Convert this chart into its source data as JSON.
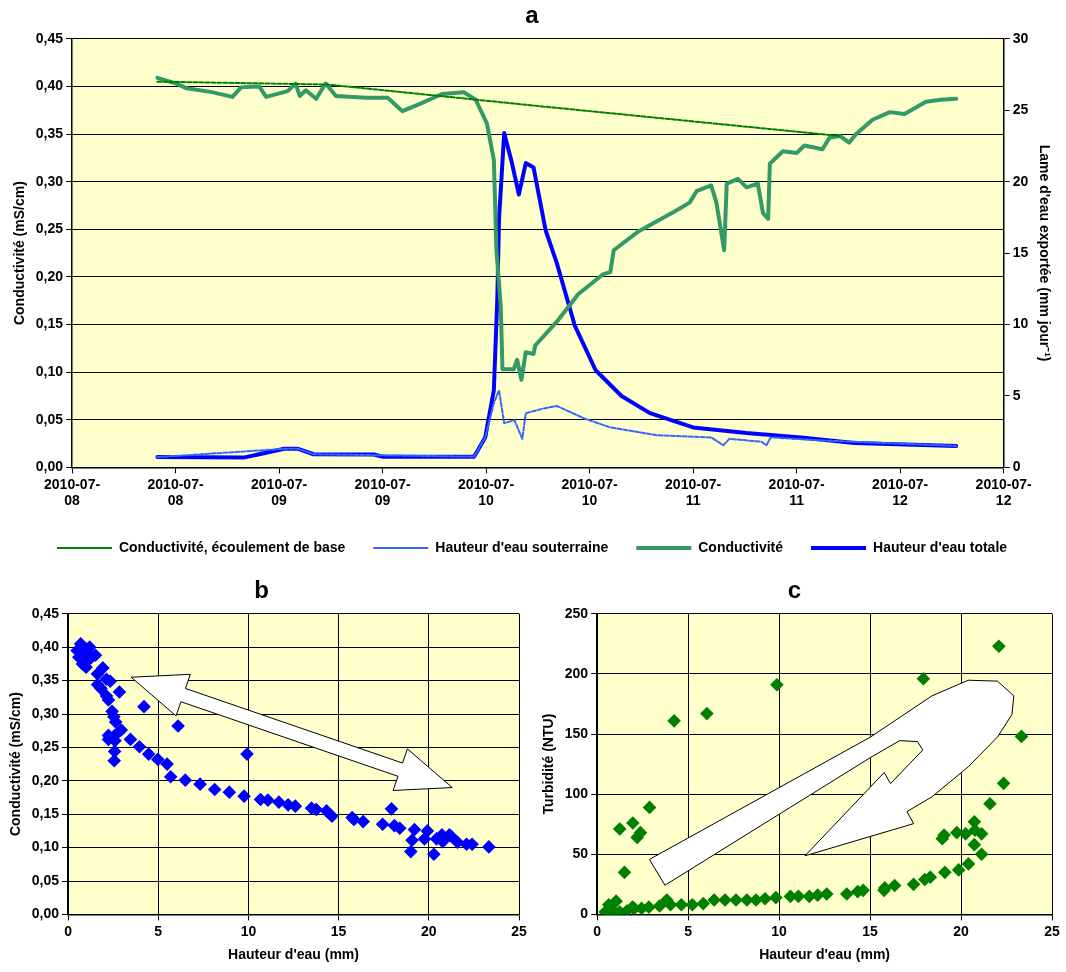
{
  "chart_data": [
    {
      "type": "line",
      "title": "a",
      "ylabel": "Conductivité (mS/cm)",
      "y2label": "Lame d'eau exportée (mm jour⁻¹)",
      "xlim": [
        "2010-07-08T00:00",
        "2010-07-12T12:00"
      ],
      "xticks": [
        {
          "value": "2010-07-08T00:00",
          "label": "2010-07-08"
        },
        {
          "value": "2010-07-08T12:00",
          "label": "2010-07-08"
        },
        {
          "value": "2010-07-09T00:00",
          "label": "2010-07-09"
        },
        {
          "value": "2010-07-09T12:00",
          "label": "2010-07-09"
        },
        {
          "value": "2010-07-10T00:00",
          "label": "2010-07-10"
        },
        {
          "value": "2010-07-10T12:00",
          "label": "2010-07-10"
        },
        {
          "value": "2010-07-11T00:00",
          "label": "2010-07-11"
        },
        {
          "value": "2010-07-11T12:00",
          "label": "2010-07-11"
        },
        {
          "value": "2010-07-12T00:00",
          "label": "2010-07-12"
        },
        {
          "value": "2010-07-12T12:00",
          "label": "2010-07-12"
        }
      ],
      "ylim": [
        0,
        0.45
      ],
      "yticks": [
        {
          "value": 0,
          "label": "0,00"
        },
        {
          "value": 0.05,
          "label": "0,05"
        },
        {
          "value": 0.1,
          "label": "0,10"
        },
        {
          "value": 0.15,
          "label": "0,15"
        },
        {
          "value": 0.2,
          "label": "0,20"
        },
        {
          "value": 0.25,
          "label": "0,25"
        },
        {
          "value": 0.3,
          "label": "0,30"
        },
        {
          "value": 0.35,
          "label": "0,35"
        },
        {
          "value": 0.4,
          "label": "0,40"
        },
        {
          "value": 0.45,
          "label": "0,45"
        }
      ],
      "y2lim": [
        0,
        30
      ],
      "y2ticks": [
        0,
        5,
        10,
        15,
        20,
        25,
        30
      ],
      "grid": "y",
      "legend": "bottom",
      "marker": "none",
      "series": [
        {
          "name": "Conductivité",
          "color": "#339966",
          "line_style": "solid",
          "x": [
            "2010-07-08T09:54",
            "2010-07-08T12:06",
            "2010-07-08T13:18",
            "2010-07-08T16:12",
            "2010-07-08T18:36",
            "2010-07-08T19:36",
            "2010-07-08T21:42",
            "2010-07-08T22:30",
            "2010-07-09T01:00",
            "2010-07-09T01:54",
            "2010-07-09T02:24",
            "2010-07-09T03:06",
            "2010-07-09T04:18",
            "2010-07-09T05:24",
            "2010-07-09T06:36",
            "2010-07-09T10:06",
            "2010-07-09T12:36",
            "2010-07-09T14:18",
            "2010-07-09T16:24",
            "2010-07-09T18:54",
            "2010-07-09T21:24",
            "2010-07-09T22:48",
            "2010-07-10T00:06",
            "2010-07-10T00:54",
            "2010-07-10T01:12",
            "2010-07-10T01:42",
            "2010-07-10T01:54",
            "2010-07-10T03:12",
            "2010-07-10T03:36",
            "2010-07-10T04:06",
            "2010-07-10T04:36",
            "2010-07-10T05:30",
            "2010-07-10T05:42",
            "2010-07-10T08:12",
            "2010-07-10T10:42",
            "2010-07-10T13:36",
            "2010-07-10T14:24",
            "2010-07-10T14:48",
            "2010-07-10T17:42",
            "2010-07-10T21:54",
            "2010-07-10T23:36",
            "2010-07-11T00:24",
            "2010-07-11T02:06",
            "2010-07-11T02:42",
            "2010-07-11T03:36",
            "2010-07-11T03:54",
            "2010-07-11T05:12",
            "2010-07-11T06:12",
            "2010-07-11T07:30",
            "2010-07-11T08:06",
            "2010-07-11T08:42",
            "2010-07-11T08:54",
            "2010-07-11T10:24",
            "2010-07-11T12:00",
            "2010-07-11T12:54",
            "2010-07-11T15:00",
            "2010-07-11T15:48",
            "2010-07-11T17:00",
            "2010-07-11T18:06",
            "2010-07-11T18:54",
            "2010-07-11T20:48",
            "2010-07-11T22:48",
            "2010-07-12T00:30",
            "2010-07-12T03:00",
            "2010-07-12T04:42",
            "2010-07-12T06:30"
          ],
          "values": [
            0.409,
            0.403,
            0.398,
            0.394,
            0.389,
            0.399,
            0.4,
            0.389,
            0.395,
            0.403,
            0.39,
            0.396,
            0.387,
            0.403,
            0.39,
            0.388,
            0.388,
            0.374,
            0.382,
            0.392,
            0.394,
            0.386,
            0.361,
            0.323,
            0.228,
            0.169,
            0.103,
            0.103,
            0.113,
            0.092,
            0.121,
            0.119,
            0.128,
            0.153,
            0.182,
            0.203,
            0.205,
            0.228,
            0.248,
            0.269,
            0.278,
            0.29,
            0.296,
            0.278,
            0.228,
            0.298,
            0.303,
            0.294,
            0.298,
            0.267,
            0.261,
            0.319,
            0.332,
            0.33,
            0.338,
            0.334,
            0.346,
            0.348,
            0.341,
            0.35,
            0.365,
            0.373,
            0.371,
            0.384,
            0.386,
            0.387
          ]
        },
        {
          "name": "Conductivité, écoulement de base",
          "color": "#008000",
          "line_style": "dashed",
          "x": [
            "2010-07-08T09:54",
            "2010-07-09T05:36",
            "2010-07-10T06:30",
            "2010-07-11T17:00"
          ],
          "values": [
            0.405,
            0.402,
            0.379,
            0.348
          ]
        },
        {
          "name": "Hauteur d'eau totale",
          "color": "#0000ff",
          "line_style": "solid",
          "axis": "y2",
          "x": [
            "2010-07-08T09:54",
            "2010-07-08T20:00",
            "2010-07-09T00:36",
            "2010-07-09T02:12",
            "2010-07-09T04:00",
            "2010-07-09T11:00",
            "2010-07-09T12:00",
            "2010-07-09T22:36",
            "2010-07-09T23:54",
            "2010-07-10T00:54",
            "2010-07-10T01:18",
            "2010-07-10T01:30",
            "2010-07-10T02:06",
            "2010-07-10T03:00",
            "2010-07-10T03:48",
            "2010-07-10T04:36",
            "2010-07-10T05:30",
            "2010-07-10T06:54",
            "2010-07-10T08:12",
            "2010-07-10T10:18",
            "2010-07-10T12:42",
            "2010-07-10T15:42",
            "2010-07-10T19:00",
            "2010-07-11T00:00",
            "2010-07-11T06:12",
            "2010-07-11T12:30",
            "2010-07-11T18:42",
            "2010-07-12T06:30"
          ],
          "values": [
            0.72,
            0.7,
            1.3,
            1.3,
            0.92,
            0.9,
            0.75,
            0.75,
            2.1,
            5.4,
            11.8,
            17.4,
            23.4,
            21.3,
            19.1,
            21.3,
            21.0,
            16.6,
            14.3,
            9.9,
            6.8,
            5.0,
            3.8,
            2.8,
            2.4,
            2.1,
            1.7,
            1.5
          ]
        },
        {
          "name": "Hauteur d'eau souterraine",
          "color": "#3366ff",
          "line_style": "dashed",
          "axis": "y2",
          "x": [
            "2010-07-08T09:54",
            "2010-07-09T00:36",
            "2010-07-09T02:12",
            "2010-07-09T04:00",
            "2010-07-09T22:36",
            "2010-07-09T23:54",
            "2010-07-10T00:54",
            "2010-07-10T01:30",
            "2010-07-10T02:06",
            "2010-07-10T03:18",
            "2010-07-10T04:12",
            "2010-07-10T04:36",
            "2010-07-10T06:30",
            "2010-07-10T08:12",
            "2010-07-10T11:30",
            "2010-07-10T14:24",
            "2010-07-10T19:48",
            "2010-07-11T02:06",
            "2010-07-11T03:30",
            "2010-07-11T04:12",
            "2010-07-11T07:54",
            "2010-07-11T08:30",
            "2010-07-11T09:00",
            "2010-07-11T14:30",
            "2010-07-12T06:30"
          ],
          "values": [
            0.72,
            1.3,
            1.3,
            0.92,
            0.75,
            2.1,
            4.5,
            5.4,
            3.1,
            3.3,
            2.0,
            3.8,
            4.1,
            4.3,
            3.4,
            2.8,
            2.25,
            2.1,
            1.55,
            2.0,
            1.8,
            1.55,
            2.1,
            1.9,
            1.5
          ]
        }
      ]
    },
    {
      "type": "scatter",
      "title": "b",
      "xlabel": "Hauteur d'eau (mm)",
      "ylabel": "Conductivité (mS/cm)",
      "xlim": [
        0,
        25
      ],
      "xticks": [
        0,
        5,
        10,
        15,
        20,
        25
      ],
      "ylim": [
        0,
        0.45
      ],
      "yticks": [
        {
          "value": 0,
          "label": "0,00"
        },
        {
          "value": 0.05,
          "label": "0,05"
        },
        {
          "value": 0.1,
          "label": "0,10"
        },
        {
          "value": 0.15,
          "label": "0,15"
        },
        {
          "value": 0.2,
          "label": "0,20"
        },
        {
          "value": 0.25,
          "label": "0,25"
        },
        {
          "value": 0.3,
          "label": "0,30"
        },
        {
          "value": 0.35,
          "label": "0,35"
        },
        {
          "value": 0.4,
          "label": "0,40"
        },
        {
          "value": 0.45,
          "label": "0,45"
        }
      ],
      "grid": true,
      "marker": "diamond",
      "color": "#0000ff",
      "x": [
        0.5,
        0.7,
        0.9,
        1.1,
        1.2,
        0.8,
        1.3,
        0.6,
        1.0,
        1.52,
        1.63,
        1.63,
        1.93,
        1.83,
        2.13,
        2.34,
        2.13,
        2.24,
        2.85,
        4.21,
        2.44,
        2.54,
        2.64,
        2.24,
        2.24,
        2.6,
        2.6,
        2.58,
        2.56,
        6.1,
        9.92,
        2.95,
        3.46,
        3.96,
        4.47,
        4.98,
        5.49,
        5.69,
        6.5,
        7.32,
        8.13,
        8.94,
        9.76,
        10.67,
        11.08,
        11.69,
        12.2,
        12.6,
        13.5,
        13.76,
        14.33,
        14.63,
        15.75,
        15.85,
        16.36,
        17.44,
        17.93,
        18.09,
        18.39,
        19.2,
        19.92,
        19.07,
        19.0,
        19.76,
        20.28,
        20.43,
        20.77,
        20.73,
        21.14,
        21.24,
        21.59,
        22.09,
        22.4,
        23.33
      ],
      "values": [
        0.395,
        0.405,
        0.39,
        0.38,
        0.4,
        0.375,
        0.385,
        0.385,
        0.37,
        0.388,
        0.36,
        0.344,
        0.369,
        0.338,
        0.352,
        0.349,
        0.327,
        0.321,
        0.333,
        0.311,
        0.304,
        0.296,
        0.288,
        0.268,
        0.262,
        0.268,
        0.26,
        0.244,
        0.23,
        0.282,
        0.24,
        0.276,
        0.262,
        0.251,
        0.24,
        0.232,
        0.225,
        0.206,
        0.201,
        0.195,
        0.187,
        0.183,
        0.177,
        0.172,
        0.171,
        0.168,
        0.164,
        0.162,
        0.159,
        0.157,
        0.155,
        0.147,
        0.145,
        0.142,
        0.139,
        0.135,
        0.158,
        0.133,
        0.129,
        0.127,
        0.125,
        0.111,
        0.094,
        0.113,
        0.09,
        0.113,
        0.109,
        0.119,
        0.119,
        0.117,
        0.108,
        0.105,
        0.105,
        0.101
      ]
    },
    {
      "type": "scatter",
      "title": "c",
      "xlabel": "Hauteur d'eau (mm)",
      "ylabel": "Turbidité (NTU)",
      "xlim": [
        0,
        25
      ],
      "xticks": [
        0,
        5,
        10,
        15,
        20,
        25
      ],
      "ylim": [
        0,
        250
      ],
      "yticks": [
        0,
        50,
        100,
        150,
        200,
        250
      ],
      "grid": true,
      "marker": "diamond",
      "color": "#008000",
      "x": [
        1.24,
        1.5,
        1.96,
        2.2,
        2.38,
        2.88,
        4.23,
        6.03,
        9.88,
        17.93,
        22.08,
        23.32,
        22.34,
        21.59,
        21.13,
        20.73,
        20.77,
        20.73,
        21.13,
        20.25,
        19.77,
        19.07,
        18.97,
        20.41,
        19.87,
        19.11,
        18.31,
        18.01,
        17.39,
        16.35,
        15.81,
        15.77,
        14.62,
        14.32,
        13.72,
        12.62,
        12.12,
        11.66,
        11.06,
        10.62,
        9.82,
        9.23,
        8.73,
        8.23,
        7.63,
        7.03,
        6.43,
        5.83,
        5.23,
        4.63,
        4.03,
        3.83,
        3.43,
        2.84,
        2.44,
        2.04,
        1.64,
        1.24,
        0.84,
        0.64,
        1.04,
        0.44,
        0.74,
        1.94
      ],
      "values": [
        71,
        35,
        76,
        64,
        68,
        89,
        161,
        167,
        191,
        196,
        223,
        148,
        109,
        92,
        67,
        77,
        70,
        58,
        50,
        67,
        68,
        66,
        63,
        42,
        37,
        35,
        31,
        29,
        25,
        24,
        22,
        20,
        20,
        19,
        17,
        17,
        16,
        15,
        15,
        15,
        14,
        13,
        12,
        12,
        12,
        12,
        12,
        9,
        8,
        8,
        8,
        12,
        7,
        6,
        5,
        5,
        3,
        2,
        1,
        8,
        11,
        2,
        5,
        6
      ]
    }
  ]
}
